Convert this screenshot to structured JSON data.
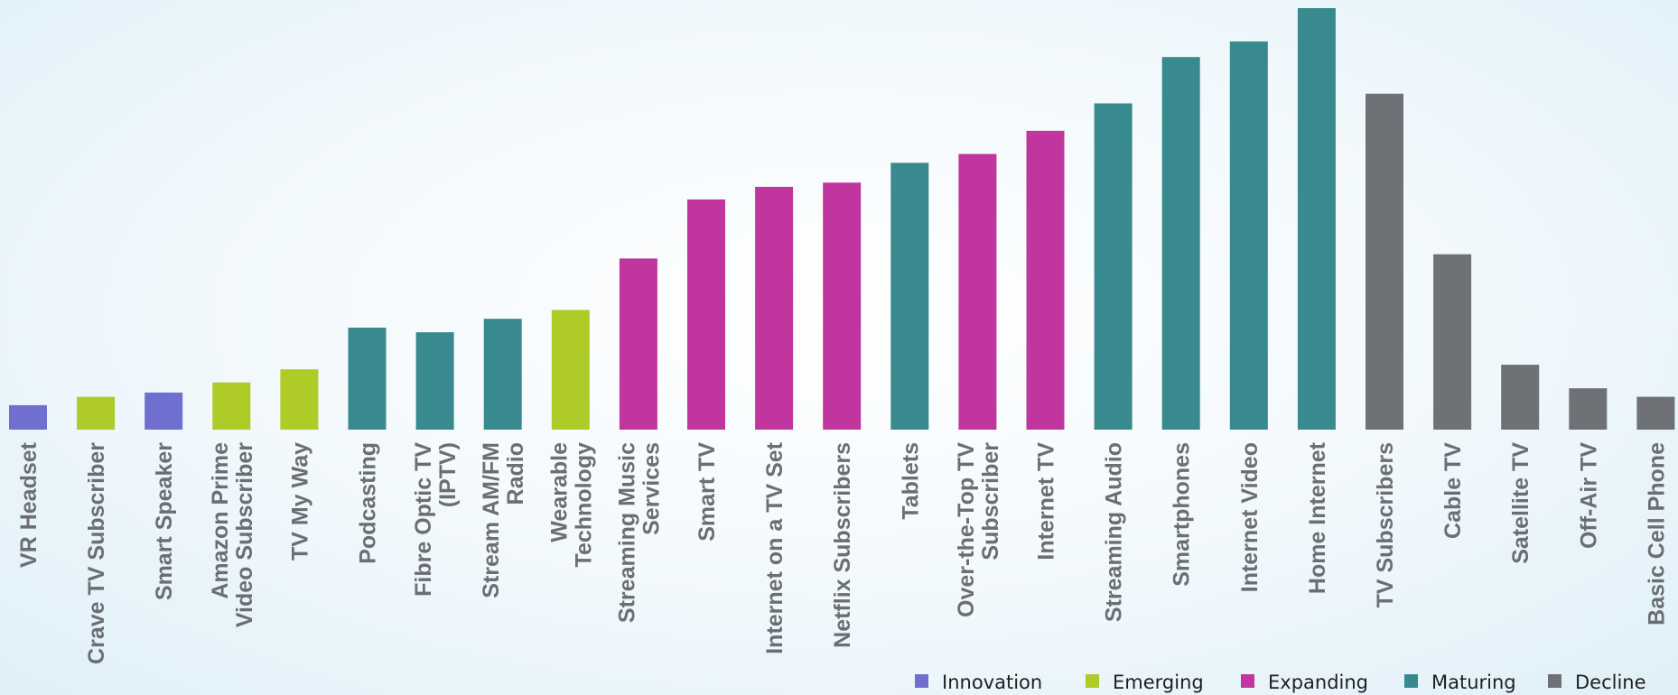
{
  "chart_data": {
    "type": "bar",
    "title": "",
    "xlabel": "",
    "ylabel": "",
    "ylim": [
      0,
      100
    ],
    "grid": false,
    "legend_placement": "bottom-right",
    "stage_colors": {
      "Innovation": "#6f6fcf",
      "Emerging": "#aecb27",
      "Expanding": "#c1369e",
      "Maturing": "#388a8f",
      "Decline": "#6e7176"
    },
    "legend": [
      "Innovation",
      "Emerging",
      "Expanding",
      "Maturing",
      "Decline"
    ],
    "categories": [
      "VR Headset",
      "Crave TV Subscriber",
      "Smart Speaker",
      "Amazon Prime Video Subscriber",
      "TV My Way",
      "Podcasting",
      "Fibre Optic TV (IPTV)",
      "Stream AM/FM Radio",
      "Wearable Technology",
      "Streaming Music Services",
      "Smart TV",
      "Internet on a TV Set",
      "Netflix Subscribers",
      "Tablets",
      "Over-the-Top TV Subscriber",
      "Internet TV",
      "Streaming Audio",
      "Smartphones",
      "Internet Video",
      "Home Internet",
      "TV Subscribers",
      "Cable TV",
      "Satellite TV",
      "Off-Air TV",
      "Basic Cell Phone"
    ],
    "category_lines": [
      [
        "VR Headset"
      ],
      [
        "Crave TV Subscriber"
      ],
      [
        "Smart Speaker"
      ],
      [
        "Amazon Prime",
        "Video Subscriber"
      ],
      [
        "TV My Way"
      ],
      [
        "Podcasting"
      ],
      [
        "Fibre Optic TV",
        "(IPTV)"
      ],
      [
        "Stream AM/FM",
        "Radio"
      ],
      [
        "Wearable",
        "Technology"
      ],
      [
        "Streaming Music",
        "Services"
      ],
      [
        "Smart TV"
      ],
      [
        "Internet on a TV Set"
      ],
      [
        "Netflix Subscribers"
      ],
      [
        "Tablets"
      ],
      [
        "Over-the-Top TV",
        "Subscriber"
      ],
      [
        "Internet TV"
      ],
      [
        "Streaming Audio"
      ],
      [
        "Smartphones"
      ],
      [
        "Internet Video"
      ],
      [
        "Home Internet"
      ],
      [
        "TV Subscribers"
      ],
      [
        "Cable TV"
      ],
      [
        "Satellite TV"
      ],
      [
        "Off-Air TV"
      ],
      [
        "Basic Cell Phone"
      ]
    ],
    "stages": [
      "Innovation",
      "Emerging",
      "Innovation",
      "Emerging",
      "Emerging",
      "Maturing",
      "Maturing",
      "Maturing",
      "Emerging",
      "Expanding",
      "Expanding",
      "Expanding",
      "Expanding",
      "Maturing",
      "Expanding",
      "Expanding",
      "Maturing",
      "Maturing",
      "Maturing",
      "Maturing",
      "Decline",
      "Decline",
      "Decline",
      "Decline",
      "Decline"
    ],
    "values": [
      5.8,
      7.8,
      8.8,
      11.2,
      14.3,
      24.2,
      23.1,
      26.3,
      28.4,
      40.6,
      54.6,
      57.6,
      58.6,
      63.3,
      65.4,
      70.9,
      77.4,
      88.4,
      92.1,
      100,
      79.7,
      41.6,
      15.4,
      9.8,
      7.8
    ]
  }
}
